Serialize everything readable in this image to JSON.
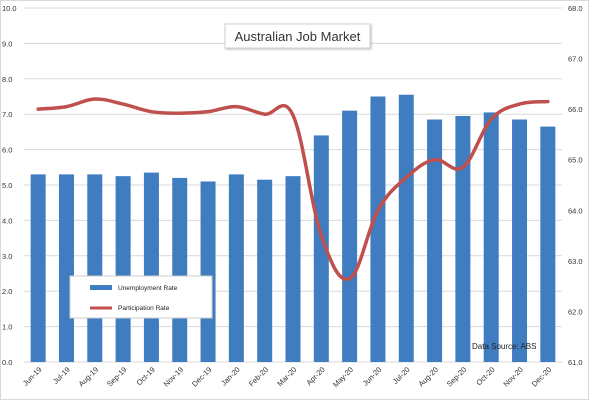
{
  "chart_data": {
    "type": "bar",
    "title": "Australian Job Market",
    "categories": [
      "Jun-19",
      "Jul-19",
      "Aug-19",
      "Sep-19",
      "Oct-19",
      "Nov-19",
      "Dec-19",
      "Jan-20",
      "Feb-20",
      "Mar-20",
      "Apr-20",
      "May-20",
      "Jun-20",
      "Jul-20",
      "Aug-20",
      "Sep-20",
      "Oct-20",
      "Nov-20",
      "Dec-20"
    ],
    "series": [
      {
        "name": "Unemployment Rate",
        "type": "bar",
        "axis": "left",
        "color": "#3f7dc0",
        "values": [
          5.3,
          5.3,
          5.3,
          5.25,
          5.35,
          5.2,
          5.1,
          5.3,
          5.15,
          5.25,
          6.4,
          7.1,
          7.5,
          7.55,
          6.85,
          6.95,
          7.05,
          6.85,
          6.65
        ]
      },
      {
        "name": "Participation Rate",
        "type": "line",
        "axis": "right",
        "color": "#c0504d",
        "values": [
          66.0,
          66.05,
          66.2,
          66.1,
          65.95,
          65.92,
          65.95,
          66.05,
          65.9,
          65.88,
          63.5,
          62.65,
          64.0,
          64.65,
          65.0,
          64.85,
          65.8,
          66.1,
          66.15
        ]
      }
    ],
    "yleft": {
      "ylim": [
        0.0,
        10.0
      ],
      "ticks": [
        "0.0",
        "1.0",
        "2.0",
        "3.0",
        "4.0",
        "5.0",
        "6.0",
        "7.0",
        "8.0",
        "9.0",
        "10.0"
      ]
    },
    "yright": {
      "ylim": [
        61.0,
        68.0
      ],
      "ticks": [
        "61.0",
        "62.0",
        "63.0",
        "64.0",
        "65.0",
        "66.0",
        "67.0",
        "68.0"
      ]
    },
    "grid": true,
    "legend_position": "bottom-left",
    "note": "Data Source: ABS"
  }
}
